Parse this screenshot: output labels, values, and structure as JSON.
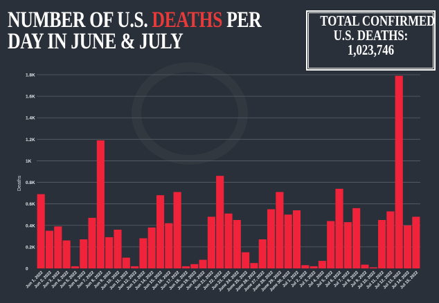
{
  "header": {
    "title_part1": "NUMBER OF U.S. ",
    "title_highlight": "DEATHS",
    "title_part2": " PER",
    "title_line2": "DAY IN JUNE & JULY",
    "highlight_color": "#e63b3b"
  },
  "total_box": {
    "line1": "TOTAL CONFIRMED",
    "line2": "U.S. DEATHS:",
    "value": "1,023,746"
  },
  "chart_data": {
    "type": "bar",
    "title": "Number of U.S. deaths per day in June & July",
    "xlabel": "",
    "ylabel": "Deaths",
    "ylim": [
      0,
      1800
    ],
    "yticks": [
      0,
      200,
      400,
      600,
      800,
      1000,
      1200,
      1400,
      1600,
      1800
    ],
    "ytick_labels": [
      "0",
      "0.2K",
      "0.4K",
      "0.6K",
      "0.8K",
      "1K",
      "1.2K",
      "1.4K",
      "1.6K",
      "1.8K"
    ],
    "grid": true,
    "bar_color": "#f0233a",
    "categories": [
      "Jun 1, 2022",
      "Jun 2, 2022",
      "Jun 3, 2022",
      "Jun 4, 2022",
      "Jun 5, 2022",
      "Jun 6, 2022",
      "Jun 7, 2022",
      "Jun 8, 2022",
      "Jun 9, 2022",
      "Jun 10, 2022",
      "Jun 11, 2022",
      "Jun 12, 2022",
      "Jun 13, 2022",
      "Jun 14, 2022",
      "Jun 15, 2022",
      "Jun 16, 2022",
      "Jun 17, 2022",
      "Jun 18, 2022",
      "Jun 19, 2022",
      "Jun 20, 2022",
      "Jun 21, 2022",
      "Jun 22, 2022",
      "Jun 23, 2022",
      "June 24, 2022",
      "June 25, 2022",
      "June 26, 2022",
      "June 27, 2022",
      "June 28, 2022",
      "June 29, 2022",
      "June 30, 2022",
      "Jul 1, 2022",
      "Jul 2, 2022",
      "Jul 3, 2022",
      "Jul 4, 2022",
      "Jul 5, 2022",
      "Jul 6, 2022",
      "Jul 7, 2022",
      "Jul 8, 2022",
      "Jul 9, 2022",
      "Jul 10, 2022",
      "Jul 11, 2022",
      "Jul 12, 2022",
      "Jul 13, 2022",
      "Jul 14, 2022",
      "Jul 15, 2022"
    ],
    "values": [
      690,
      350,
      390,
      260,
      20,
      270,
      470,
      1190,
      290,
      360,
      100,
      20,
      280,
      380,
      680,
      420,
      710,
      20,
      40,
      80,
      480,
      860,
      510,
      450,
      150,
      50,
      270,
      550,
      710,
      500,
      540,
      30,
      20,
      70,
      440,
      740,
      430,
      560,
      35,
      10,
      450,
      530,
      1790,
      400,
      480
    ]
  }
}
